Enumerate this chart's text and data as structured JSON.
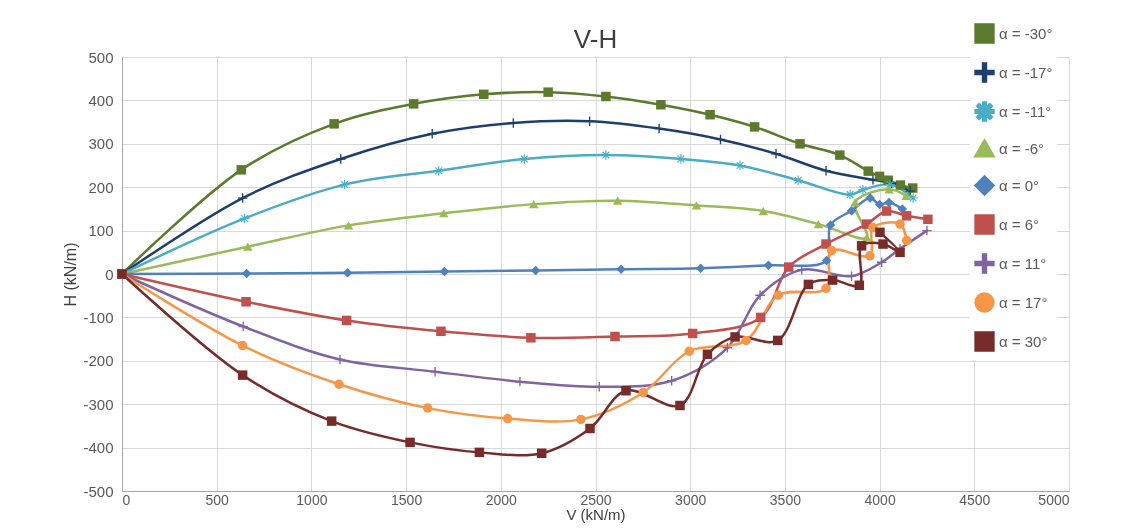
{
  "chart_data": {
    "type": "line",
    "title": "V-H",
    "xlabel": "V (kN/m)",
    "ylabel": "H (kN/m)",
    "xlim": [
      0,
      5000
    ],
    "xticks": [
      0,
      500,
      1000,
      1500,
      2000,
      2500,
      3000,
      3500,
      4000,
      4500,
      5000
    ],
    "ylim": [
      -500,
      500
    ],
    "yticks": [
      -500,
      -400,
      -300,
      -200,
      -100,
      0,
      100,
      200,
      300,
      400,
      500
    ],
    "grid": true,
    "legend": "top right",
    "line_style": "solid",
    "series": [
      {
        "name": "α = -30°",
        "color": "#5b7a2e",
        "marker": "square",
        "x": [
          0,
          630,
          1120,
          1540,
          1910,
          2250,
          2555,
          2845,
          3105,
          3340,
          3580,
          3790,
          3940,
          4000,
          4045,
          4110,
          4175
        ],
        "values": [
          0,
          240,
          346,
          392,
          414,
          419,
          409,
          390,
          367,
          339,
          300,
          274,
          237,
          225,
          216,
          205,
          198
        ]
      },
      {
        "name": "α = -17°",
        "color": "#1f3e6e",
        "marker": "cross",
        "x": [
          0,
          637,
          1155,
          1638,
          2066,
          2469,
          2836,
          3160,
          3453,
          3717,
          3965,
          4063,
          4161
        ],
        "values": [
          0,
          175,
          265,
          323,
          348,
          352,
          335,
          310,
          277,
          238,
          217,
          209,
          191
        ]
      },
      {
        "name": "α = -11°",
        "color": "#4bacc6",
        "marker": "star",
        "x": [
          0,
          647,
          1175,
          1672,
          2124,
          2555,
          2951,
          3263,
          3570,
          3844,
          3912,
          4055,
          4177
        ],
        "values": [
          0,
          128,
          206,
          238,
          265,
          274,
          265,
          250,
          216,
          183,
          194,
          206,
          175
        ]
      },
      {
        "name": "α = -6°",
        "color": "#9bbb59",
        "marker": "triangle",
        "x": [
          0,
          664,
          1196,
          1699,
          2174,
          2617,
          3033,
          3386,
          3677,
          3932,
          3870,
          4050,
          4140
        ],
        "values": [
          0,
          63,
          112,
          140,
          161,
          169,
          158,
          145,
          115,
          84,
          165,
          195,
          180
        ]
      },
      {
        "name": "α = 0°",
        "color": "#4f81bd",
        "marker": "diamond",
        "x": [
          0,
          658,
          1191,
          1702,
          2184,
          2635,
          3055,
          3413,
          3720,
          3741,
          3852,
          3950,
          4000,
          4050,
          4120
        ],
        "values": [
          0,
          1,
          3,
          6,
          8,
          11,
          13,
          20,
          31,
          113,
          146,
          175,
          160,
          165,
          150
        ]
      },
      {
        "name": "α = 6°",
        "color": "#c0504d",
        "marker": "square",
        "x": [
          0,
          655,
          1186,
          1684,
          2159,
          2603,
          3013,
          3372,
          3520,
          3717,
          3932,
          4037,
          4143,
          4255
        ],
        "values": [
          0,
          -64,
          -107,
          -132,
          -147,
          -144,
          -137,
          -100,
          16,
          69,
          115,
          145,
          134,
          126
        ]
      },
      {
        "name": "α = 11°",
        "color": "#8064a2",
        "marker": "cross",
        "x": [
          0,
          640,
          1151,
          1653,
          2101,
          2520,
          2902,
          3196,
          3369,
          3589,
          3852,
          4011,
          4108,
          4250
        ],
        "values": [
          0,
          -121,
          -197,
          -225,
          -248,
          -260,
          -246,
          -170,
          -49,
          10,
          -5,
          27,
          58,
          100
        ]
      },
      {
        "name": "α = 17°",
        "color": "#f79646",
        "marker": "circle",
        "x": [
          0,
          637,
          1146,
          1614,
          2036,
          2423,
          2752,
          2995,
          3295,
          3465,
          3717,
          3747,
          3949,
          3965,
          4108,
          4143
        ],
        "values": [
          0,
          -165,
          -254,
          -309,
          -333,
          -335,
          -273,
          -178,
          -153,
          -49,
          -33,
          54,
          42,
          107,
          115,
          77
        ]
      },
      {
        "name": "α = 30°",
        "color": "#772c2a",
        "marker": "square",
        "x": [
          0,
          637,
          1107,
          1521,
          1887,
          2216,
          2471,
          2661,
          2946,
          3091,
          3237,
          3462,
          3624,
          3752,
          3893,
          3905,
          4018,
          4108,
          4002
        ],
        "values": [
          0,
          -233,
          -339,
          -388,
          -411,
          -413,
          -356,
          -269,
          -303,
          -185,
          -145,
          -153,
          -24,
          -14,
          -26,
          65,
          69,
          50,
          96
        ]
      }
    ]
  }
}
